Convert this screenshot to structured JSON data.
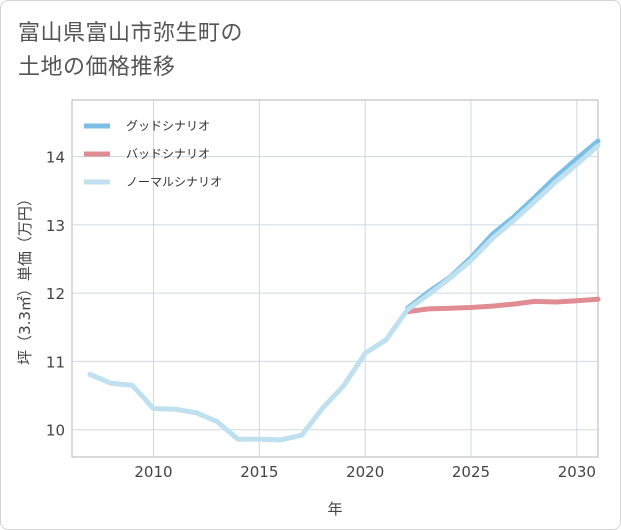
{
  "title": {
    "line1": "富山県富山市弥生町の",
    "line2": "土地の価格推移"
  },
  "chart_data": {
    "type": "line",
    "xlabel": "年",
    "ylabel": "坪（3.3㎡）単価（万円）",
    "xlim": [
      2006.15,
      2031
    ],
    "ylim": [
      9.6,
      14.83
    ],
    "x_ticks": [
      2010,
      2015,
      2020,
      2025,
      2030
    ],
    "y_ticks": [
      10,
      11,
      12,
      13,
      14
    ],
    "grid": true,
    "legend_position": "top-left",
    "series": [
      {
        "name": "グッドシナリオ",
        "color": "#7cbfe6",
        "points": [
          [
            2022,
            11.78
          ],
          [
            2023,
            12.02
          ],
          [
            2024,
            12.23
          ],
          [
            2025,
            12.52
          ],
          [
            2026,
            12.86
          ],
          [
            2027,
            13.11
          ],
          [
            2028,
            13.4
          ],
          [
            2029,
            13.7
          ],
          [
            2030,
            13.97
          ],
          [
            2031,
            14.23
          ]
        ]
      },
      {
        "name": "バッドシナリオ",
        "color": "#e08c93",
        "points": [
          [
            2022,
            11.73
          ],
          [
            2023,
            11.77
          ],
          [
            2024,
            11.78
          ],
          [
            2025,
            11.79
          ],
          [
            2026,
            11.81
          ],
          [
            2027,
            11.84
          ],
          [
            2028,
            11.88
          ],
          [
            2029,
            11.87
          ],
          [
            2030,
            11.89
          ],
          [
            2031,
            11.91
          ]
        ]
      },
      {
        "name": "ノーマルシナリオ",
        "color": "#bfe0ee",
        "points": [
          [
            2007,
            10.81
          ],
          [
            2008,
            10.68
          ],
          [
            2009,
            10.65
          ],
          [
            2010,
            10.31
          ],
          [
            2011,
            10.3
          ],
          [
            2012,
            10.25
          ],
          [
            2013,
            10.12
          ],
          [
            2014,
            9.86
          ],
          [
            2015,
            9.86
          ],
          [
            2016,
            9.85
          ],
          [
            2017,
            9.92
          ],
          [
            2018,
            10.32
          ],
          [
            2019,
            10.65
          ],
          [
            2020,
            11.12
          ],
          [
            2021,
            11.32
          ],
          [
            2022,
            11.76
          ],
          [
            2023,
            11.98
          ],
          [
            2024,
            12.22
          ],
          [
            2025,
            12.48
          ],
          [
            2026,
            12.8
          ],
          [
            2027,
            13.06
          ],
          [
            2028,
            13.34
          ],
          [
            2029,
            13.63
          ],
          [
            2030,
            13.89
          ],
          [
            2031,
            14.16
          ]
        ]
      }
    ]
  }
}
